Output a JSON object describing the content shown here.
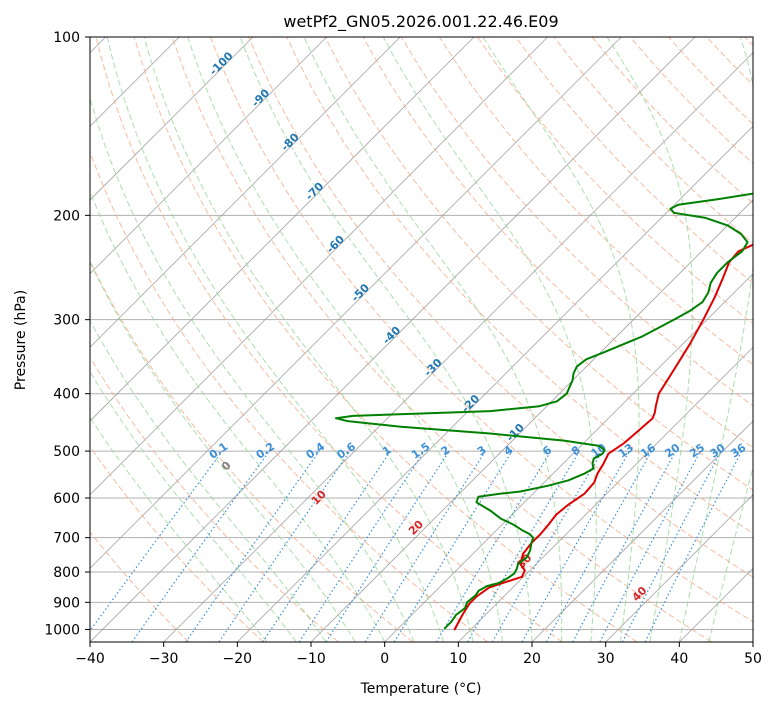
{
  "chart_data": {
    "type": "line",
    "title": "wetPf2_GN05.2026.001.22.46.E09",
    "xlabel": "Temperature (°C)",
    "ylabel": "Pressure (hPa)",
    "xlim": [
      -40,
      50
    ],
    "ylim": [
      1050,
      100
    ],
    "y_scale": "log",
    "x_ticks": [
      -40,
      -30,
      -20,
      -10,
      0,
      10,
      20,
      30,
      40,
      50
    ],
    "y_ticks": [
      100,
      200,
      300,
      400,
      500,
      600,
      700,
      800,
      900,
      1000
    ],
    "grid": true,
    "series": [
      {
        "color": "#e00000",
        "points": [
          [
            7.8,
            1000
          ],
          [
            7.3,
            970
          ],
          [
            6.8,
            940
          ],
          [
            6.3,
            905
          ],
          [
            6.3,
            880
          ],
          [
            6.8,
            850
          ],
          [
            8.0,
            835
          ],
          [
            9.8,
            815
          ],
          [
            9.3,
            795
          ],
          [
            7.8,
            775
          ],
          [
            6.8,
            745
          ],
          [
            6.5,
            715
          ],
          [
            6.5,
            690
          ],
          [
            6.3,
            665
          ],
          [
            6.0,
            640
          ],
          [
            6.3,
            615
          ],
          [
            7.0,
            590
          ],
          [
            6.8,
            565
          ],
          [
            6.0,
            545
          ],
          [
            5.5,
            525
          ],
          [
            4.8,
            505
          ],
          [
            5.5,
            485
          ],
          [
            5.8,
            460
          ],
          [
            6.0,
            440
          ],
          [
            5.5,
            430
          ],
          [
            4.8,
            420
          ],
          [
            3.5,
            400
          ],
          [
            2.5,
            370
          ],
          [
            1.0,
            330
          ],
          [
            -0.5,
            300
          ],
          [
            -2.0,
            275
          ],
          [
            -3.5,
            255
          ],
          [
            -4.8,
            240
          ],
          [
            -5.0,
            230
          ],
          [
            -3.5,
            222
          ],
          [
            -1.0,
            215
          ],
          [
            3.0,
            207
          ],
          [
            8.0,
            200
          ],
          [
            11.5,
            194
          ],
          [
            13.5,
            185
          ],
          [
            15.5,
            175
          ],
          [
            17.5,
            168
          ],
          [
            19.5,
            160
          ],
          [
            20.8,
            152
          ],
          [
            21.3,
            145
          ],
          [
            22.0,
            138
          ],
          [
            22.5,
            131
          ],
          [
            23.0,
            126
          ],
          [
            24.0,
            120
          ],
          [
            26.0,
            113
          ],
          [
            28.5,
            107
          ],
          [
            31.0,
            102
          ],
          [
            32.0,
            100
          ]
        ]
      },
      {
        "color": "#008000",
        "points": [
          [
            6.3,
            995
          ],
          [
            6.3,
            970
          ],
          [
            6.0,
            945
          ],
          [
            6.3,
            920
          ],
          [
            5.8,
            900
          ],
          [
            6.0,
            875
          ],
          [
            5.8,
            860
          ],
          [
            6.3,
            845
          ],
          [
            7.5,
            835
          ],
          [
            8.0,
            820
          ],
          [
            8.3,
            805
          ],
          [
            8.0,
            790
          ],
          [
            7.5,
            775
          ],
          [
            7.8,
            755
          ],
          [
            7.3,
            735
          ],
          [
            6.5,
            715
          ],
          [
            6.0,
            700
          ],
          [
            5.0,
            690
          ],
          [
            3.5,
            680
          ],
          [
            1.5,
            665
          ],
          [
            -1.0,
            650
          ],
          [
            -3.5,
            630
          ],
          [
            -6.5,
            610
          ],
          [
            -7.0,
            597
          ],
          [
            -4.5,
            590
          ],
          [
            -2.0,
            585
          ],
          [
            1.0,
            572
          ],
          [
            3.0,
            560
          ],
          [
            4.3,
            545
          ],
          [
            4.8,
            535
          ],
          [
            4.0,
            525
          ],
          [
            3.5,
            515
          ],
          [
            4.0,
            505
          ],
          [
            3.8,
            498
          ],
          [
            2.5,
            490
          ],
          [
            -3.0,
            480
          ],
          [
            -14.0,
            467
          ],
          [
            -27.0,
            455
          ],
          [
            -35.0,
            445
          ],
          [
            -37.0,
            440
          ],
          [
            -35.0,
            436
          ],
          [
            -26.0,
            432
          ],
          [
            -17.0,
            428
          ],
          [
            -11.0,
            420
          ],
          [
            -9.3,
            412
          ],
          [
            -9.0,
            400
          ],
          [
            -9.5,
            390
          ],
          [
            -10.0,
            380
          ],
          [
            -10.8,
            370
          ],
          [
            -11.3,
            360
          ],
          [
            -11.0,
            350
          ],
          [
            -9.5,
            340
          ],
          [
            -8.0,
            330
          ],
          [
            -6.5,
            320
          ],
          [
            -5.5,
            310
          ],
          [
            -4.5,
            300
          ],
          [
            -3.5,
            290
          ],
          [
            -3.0,
            280
          ],
          [
            -3.5,
            270
          ],
          [
            -4.5,
            260
          ],
          [
            -5.0,
            250
          ],
          [
            -5.0,
            240
          ],
          [
            -4.5,
            230
          ],
          [
            -5.0,
            222
          ],
          [
            -7.0,
            215
          ],
          [
            -10.0,
            208
          ],
          [
            -14.0,
            202
          ],
          [
            -19.0,
            198
          ],
          [
            -20.0,
            195
          ],
          [
            -19.5,
            192
          ],
          [
            -15.0,
            188
          ],
          [
            -9.0,
            182
          ],
          [
            -7.5,
            178
          ],
          [
            -7.5,
            173
          ],
          [
            -8.5,
            168
          ],
          [
            -10.5,
            163
          ],
          [
            -9.0,
            157
          ],
          [
            -7.3,
            150
          ],
          [
            -7.0,
            145
          ],
          [
            -7.0,
            140
          ],
          [
            -6.5,
            133
          ],
          [
            -5.0,
            126
          ],
          [
            -3.5,
            120
          ],
          [
            -2.0,
            114
          ],
          [
            -1.0,
            108
          ],
          [
            -0.5,
            104
          ],
          [
            -0.3,
            100
          ]
        ]
      }
    ],
    "dry_adiabat_labels": [
      "-100",
      "-90",
      "-80",
      "-70",
      "-60",
      "-50",
      "-40",
      "-30",
      "-20",
      "-10",
      "0",
      "10",
      "20",
      "30",
      "40"
    ],
    "mixing_ratio_labels": [
      "0.1",
      "0.2",
      "0.4",
      "0.6",
      "1",
      "1.5",
      "2",
      "3",
      "4",
      "6",
      "8",
      "10",
      "13",
      "16",
      "20",
      "25",
      "30",
      "36"
    ],
    "colors": {
      "isotherm": "#8c8c8c",
      "grid": "#b0b0b0",
      "dry_adiabat": "#f4a582",
      "moist_adiabat": "#98d69a",
      "mixing_ratio": "#3a8fd8",
      "cold_label": "#1f77b4",
      "warm_label": "#d62728",
      "zero_label": "#808080"
    }
  }
}
